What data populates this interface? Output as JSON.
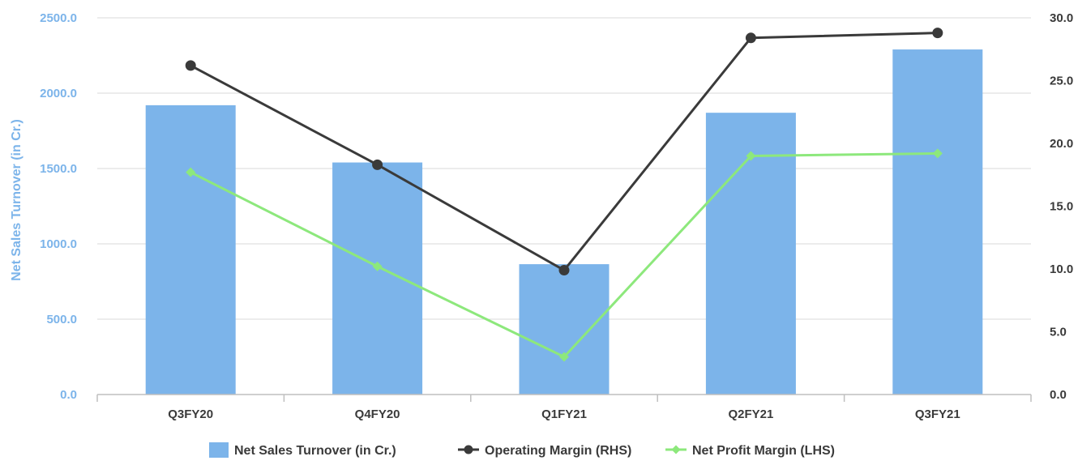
{
  "chart_data": {
    "type": "bar",
    "title": "",
    "categories": [
      "Q3FY20",
      "Q4FY20",
      "Q1FY21",
      "Q2FY21",
      "Q3FY21"
    ],
    "y_left": {
      "label": "Net Sales Turnover (in Cr.)",
      "range": [
        0,
        2500
      ],
      "ticks": [
        "0.0",
        "500.0",
        "1000.0",
        "1500.0",
        "2000.0",
        "2500.0"
      ]
    },
    "y_right": {
      "range": [
        0,
        30
      ],
      "ticks": [
        "0.0",
        "5.0",
        "10.0",
        "15.0",
        "20.0",
        "25.0",
        "30.0"
      ]
    },
    "grid": true,
    "legend_position": "bottom",
    "series": [
      {
        "name": "Net Sales Turnover (in Cr.)",
        "kind": "bar",
        "axis": "left",
        "color": "#7cb4ea",
        "values": [
          1920,
          1540,
          865,
          1870,
          2290
        ]
      },
      {
        "name": "Operating Margin (RHS)",
        "kind": "line",
        "marker": "circle",
        "axis": "right",
        "color": "#3a3a3a",
        "values": [
          26.2,
          18.3,
          9.9,
          28.4,
          28.8
        ]
      },
      {
        "name": "Net Profit Margin (LHS)",
        "kind": "line",
        "marker": "diamond",
        "axis": "right",
        "color": "#8de87c",
        "values": [
          17.7,
          10.2,
          3.0,
          19.0,
          19.2
        ]
      }
    ]
  }
}
